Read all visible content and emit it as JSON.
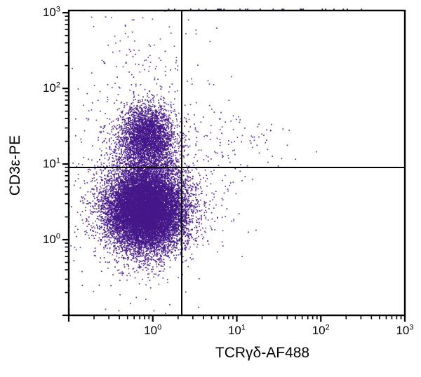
{
  "figure": {
    "background": "#ffffff"
  },
  "chart_data": {
    "type": "scatter",
    "variant": "flow-cytometry-quadrant-dot-plot",
    "title": "",
    "xlabel": "TCRγδ-AF488",
    "ylabel": "CD3ε-PE",
    "x_scale": "log",
    "y_scale": "log",
    "x_range": [
      0.1,
      1000
    ],
    "y_range": [
      0.1,
      1070
    ],
    "x_tick_exponents": [
      0,
      1,
      2,
      3
    ],
    "y_tick_exponents": [
      0,
      1,
      2,
      3
    ],
    "grid": false,
    "legend": false,
    "point_color": "#45188a",
    "edge_point_color": "#2b1055",
    "axis_color": "#000000",
    "gate_color": "#000000",
    "quadrant_gates": {
      "x_value": 2.2,
      "y_value": 9.0
    },
    "seed": 7,
    "populations": [
      {
        "name": "CD3- TCRgd- main lymphocyte cloud",
        "count": 14500,
        "center_log10": [
          -0.08,
          0.4
        ],
        "sigma_log10": [
          0.23,
          0.27
        ]
      },
      {
        "name": "CD3e+ TCRgd- T cells",
        "count": 3300,
        "center_log10": [
          -0.06,
          1.36
        ],
        "sigma_log10": [
          0.17,
          0.21
        ]
      },
      {
        "name": "bridge between CD3- and CD3+ clusters",
        "count": 800,
        "center_log10": [
          -0.08,
          0.92
        ],
        "sigma_log10": [
          0.2,
          0.25
        ]
      },
      {
        "name": "CD3e+ TCRgd+ cells (upper right quadrant)",
        "count": 120,
        "center_log10": [
          0.78,
          1.28
        ],
        "sigma_log10": [
          0.42,
          0.22
        ]
      },
      {
        "name": "TCRgd-low spill right of gate (lower right)",
        "count": 150,
        "center_log10": [
          0.45,
          0.5
        ],
        "sigma_log10": [
          0.28,
          0.3
        ]
      },
      {
        "name": "high CD3 sparse scatter near top",
        "count": 110,
        "center_log10": [
          -0.05,
          2.35
        ],
        "sigma_log10": [
          0.33,
          0.4
        ]
      },
      {
        "name": "broad sparse haze / debris",
        "count": 450,
        "center_log10": [
          -0.3,
          0.7
        ],
        "sigma_log10": [
          0.42,
          0.75
        ]
      }
    ],
    "edge_clipped_top_row": {
      "count": 26,
      "x_log_min": 0.12,
      "x_log_max": 2.55
    }
  }
}
